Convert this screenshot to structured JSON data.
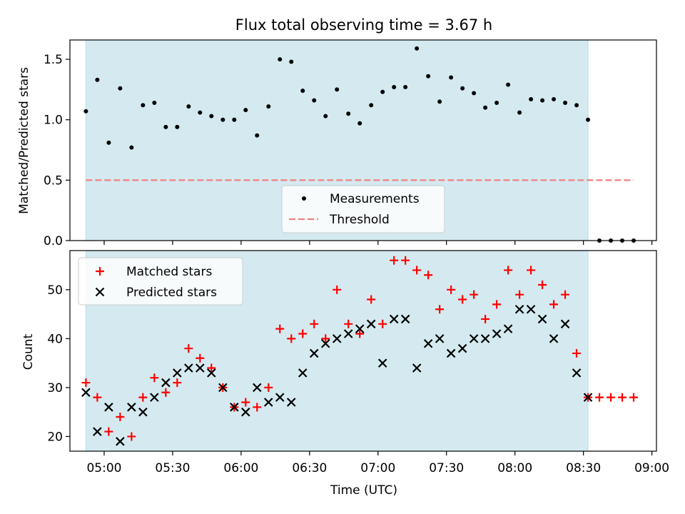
{
  "colors": {
    "shade": "#d4eaf0",
    "threshold": "#f08080",
    "matched": "#ff0000",
    "predicted": "#000000",
    "measurement": "#000000"
  },
  "chart_data": [
    {
      "type": "scatter",
      "title": "Flux total observing time = 3.67 h",
      "xlabel": "",
      "ylabel": "Matched/Predicted stars",
      "xlim": [
        "04:45",
        "09:02"
      ],
      "ylim": [
        0,
        1.66
      ],
      "yticks": [
        "0.0",
        "0.5",
        "1.0",
        "1.5"
      ],
      "xticks": [
        "05:00",
        "05:30",
        "06:00",
        "06:30",
        "07:00",
        "07:30",
        "08:00",
        "08:30",
        "09:00"
      ],
      "shaded_span": [
        "04:52",
        "08:32"
      ],
      "legend_position": "lower-center",
      "series": [
        {
          "name": "Measurements",
          "marker": "dot",
          "points": [
            [
              "04:52",
              1.07
            ],
            [
              "04:57",
              1.33
            ],
            [
              "05:02",
              0.81
            ],
            [
              "05:07",
              1.26
            ],
            [
              "05:12",
              0.77
            ],
            [
              "05:17",
              1.12
            ],
            [
              "05:22",
              1.14
            ],
            [
              "05:27",
              0.94
            ],
            [
              "05:32",
              0.94
            ],
            [
              "05:37",
              1.11
            ],
            [
              "05:42",
              1.06
            ],
            [
              "05:47",
              1.03
            ],
            [
              "05:52",
              1.0
            ],
            [
              "05:57",
              1.0
            ],
            [
              "06:02",
              1.08
            ],
            [
              "06:07",
              0.87
            ],
            [
              "06:12",
              1.11
            ],
            [
              "06:17",
              1.5
            ],
            [
              "06:22",
              1.48
            ],
            [
              "06:27",
              1.24
            ],
            [
              "06:32",
              1.16
            ],
            [
              "06:37",
              1.03
            ],
            [
              "06:42",
              1.25
            ],
            [
              "06:47",
              1.05
            ],
            [
              "06:52",
              0.97
            ],
            [
              "06:57",
              1.12
            ],
            [
              "07:02",
              1.23
            ],
            [
              "07:07",
              1.27
            ],
            [
              "07:12",
              1.27
            ],
            [
              "07:17",
              1.59
            ],
            [
              "07:22",
              1.36
            ],
            [
              "07:27",
              1.15
            ],
            [
              "07:32",
              1.35
            ],
            [
              "07:37",
              1.26
            ],
            [
              "07:42",
              1.22
            ],
            [
              "07:47",
              1.1
            ],
            [
              "07:52",
              1.14
            ],
            [
              "07:57",
              1.29
            ],
            [
              "08:02",
              1.06
            ],
            [
              "08:07",
              1.17
            ],
            [
              "08:12",
              1.16
            ],
            [
              "08:17",
              1.17
            ],
            [
              "08:22",
              1.14
            ],
            [
              "08:27",
              1.12
            ],
            [
              "08:32",
              1.0
            ],
            [
              "08:37",
              0.0
            ],
            [
              "08:42",
              0.0
            ],
            [
              "08:47",
              0.0
            ],
            [
              "08:52",
              0.0
            ]
          ]
        },
        {
          "name": "Threshold",
          "style": "dashed",
          "points": [
            [
              "04:52",
              0.5
            ],
            [
              "08:52",
              0.5
            ]
          ]
        }
      ]
    },
    {
      "type": "scatter",
      "title": "",
      "xlabel": "Time (UTC)",
      "ylabel": "Count",
      "xlim": [
        "04:45",
        "09:02"
      ],
      "ylim": [
        17,
        58
      ],
      "yticks": [
        "20",
        "30",
        "40",
        "50"
      ],
      "xticks": [
        "05:00",
        "05:30",
        "06:00",
        "06:30",
        "07:00",
        "07:30",
        "08:00",
        "08:30",
        "09:00"
      ],
      "shaded_span": [
        "04:52",
        "08:32"
      ],
      "legend_position": "upper-left",
      "x": [
        "04:52",
        "04:57",
        "05:02",
        "05:07",
        "05:12",
        "05:17",
        "05:22",
        "05:27",
        "05:32",
        "05:37",
        "05:42",
        "05:47",
        "05:52",
        "05:57",
        "06:02",
        "06:07",
        "06:12",
        "06:17",
        "06:22",
        "06:27",
        "06:32",
        "06:37",
        "06:42",
        "06:47",
        "06:52",
        "06:57",
        "07:02",
        "07:07",
        "07:12",
        "07:17",
        "07:22",
        "07:27",
        "07:32",
        "07:37",
        "07:42",
        "07:47",
        "07:52",
        "07:57",
        "08:02",
        "08:07",
        "08:12",
        "08:17",
        "08:22",
        "08:27",
        "08:32",
        "08:37",
        "08:42",
        "08:47",
        "08:52"
      ],
      "series": [
        {
          "name": "Matched stars",
          "marker": "plus",
          "values": [
            31,
            28,
            21,
            24,
            20,
            28,
            32,
            29,
            31,
            38,
            36,
            34,
            30,
            26,
            27,
            26,
            30,
            42,
            40,
            41,
            43,
            40,
            50,
            43,
            41,
            48,
            43,
            56,
            56,
            54,
            53,
            46,
            50,
            48,
            49,
            44,
            47,
            54,
            49,
            54,
            51,
            47,
            49,
            37,
            28,
            28,
            28,
            28,
            28
          ]
        },
        {
          "name": "Predicted stars",
          "marker": "x",
          "values": [
            29,
            21,
            26,
            19,
            26,
            25,
            28,
            31,
            33,
            34,
            34,
            33,
            30,
            26,
            25,
            30,
            27,
            28,
            27,
            33,
            37,
            39,
            40,
            41,
            42,
            43,
            35,
            44,
            44,
            34,
            39,
            40,
            37,
            38,
            40,
            40,
            41,
            42,
            46,
            46,
            44,
            40,
            43,
            33,
            28,
            null,
            null,
            null,
            null
          ]
        }
      ]
    }
  ]
}
